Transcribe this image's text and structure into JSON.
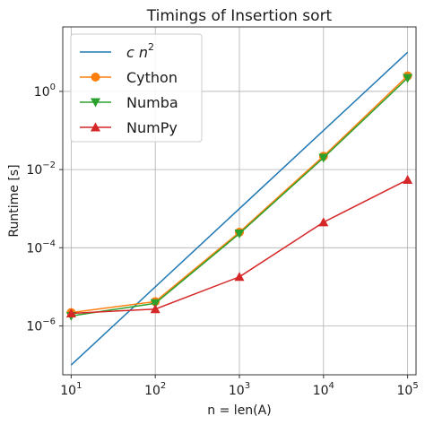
{
  "chart_data": {
    "type": "line",
    "title": "Timings of Insertion sort",
    "xlabel": "n = len(A)",
    "ylabel": "Runtime [s]",
    "x_scale": "log",
    "y_scale": "log",
    "grid": true,
    "legend_position": "top-left",
    "x_ticks": [
      {
        "value": 10,
        "base": "10",
        "exp": "1"
      },
      {
        "value": 100,
        "base": "10",
        "exp": "2"
      },
      {
        "value": 1000,
        "base": "10",
        "exp": "3"
      },
      {
        "value": 10000,
        "base": "10",
        "exp": "4"
      },
      {
        "value": 100000,
        "base": "10",
        "exp": "5"
      }
    ],
    "y_ticks": [
      {
        "value": 1e-06,
        "base": "10",
        "exp": "−6"
      },
      {
        "value": 0.0001,
        "base": "10",
        "exp": "−4"
      },
      {
        "value": 0.01,
        "base": "10",
        "exp": "−2"
      },
      {
        "value": 1,
        "base": "10",
        "exp": "0"
      }
    ],
    "series": [
      {
        "name": "c n^2",
        "legend_main": "c n",
        "legend_sup": "2",
        "color": "#1f77b4",
        "marker": "none",
        "x": [
          10,
          100000
        ],
        "y": [
          1e-07,
          10
        ]
      },
      {
        "name": "Cython",
        "color": "#ff7f0e",
        "marker": "circle",
        "x": [
          10,
          100,
          1000,
          10000,
          100000
        ],
        "y": [
          2.2e-06,
          4.2e-06,
          0.00025,
          0.022,
          2.5
        ]
      },
      {
        "name": "Numba",
        "color": "#2ca02c",
        "marker": "triangle-down",
        "x": [
          10,
          100,
          1000,
          10000,
          100000
        ],
        "y": [
          1.8e-06,
          3.8e-06,
          0.00023,
          0.02,
          2.2
        ]
      },
      {
        "name": "NumPy",
        "color": "#d62728",
        "marker": "triangle-up",
        "x": [
          10,
          100,
          1000,
          10000,
          100000
        ],
        "y": [
          2.1e-06,
          2.7e-06,
          1.8e-05,
          0.00045,
          0.0055
        ]
      }
    ]
  }
}
